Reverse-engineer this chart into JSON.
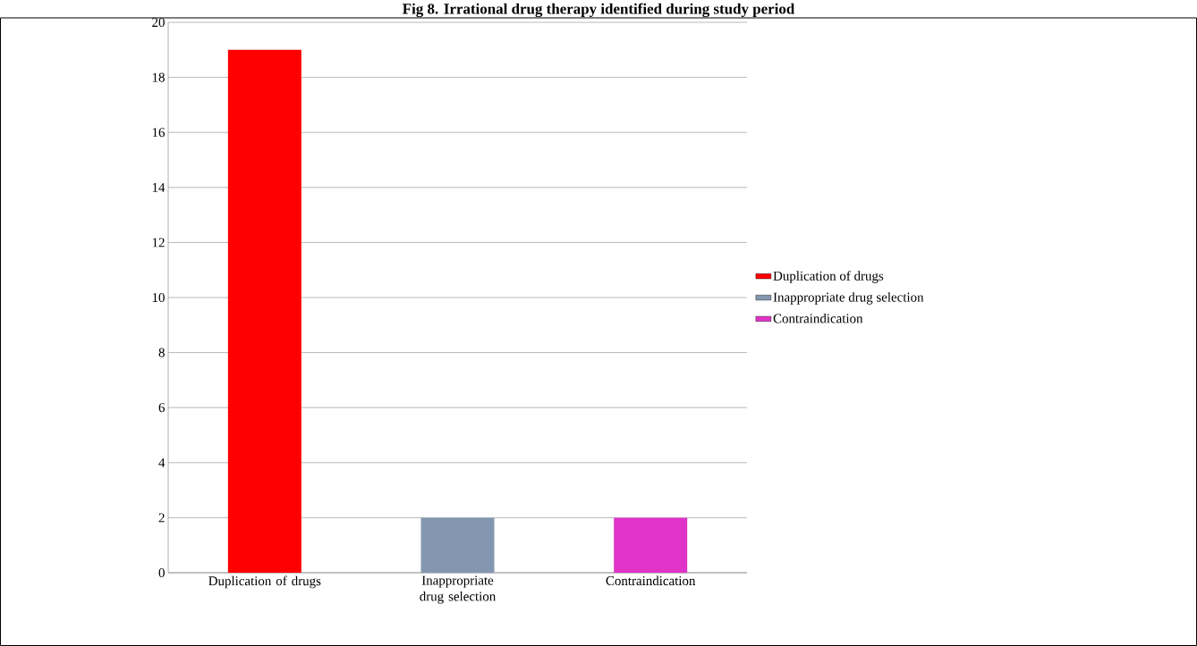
{
  "chart_data": {
    "type": "bar",
    "title": "Fig 8. Irrational drug therapy identified during study period",
    "categories": [
      "Duplication of drugs",
      "Inappropriate drug selection",
      "Contraindication"
    ],
    "series": [
      {
        "name": "Duplication of drugs",
        "color": "#ff0000",
        "values": [
          19,
          null,
          null
        ]
      },
      {
        "name": "Inappropriate drug selection",
        "color": "#8497b0",
        "values": [
          null,
          2,
          null
        ]
      },
      {
        "name": "Contraindication",
        "color": "#e033c8",
        "values": [
          null,
          null,
          2
        ]
      }
    ],
    "ylim": [
      0,
      20
    ],
    "yticks": [
      0,
      2,
      4,
      6,
      8,
      10,
      12,
      14,
      16,
      18,
      20
    ],
    "grid": "y",
    "legend": "right"
  }
}
